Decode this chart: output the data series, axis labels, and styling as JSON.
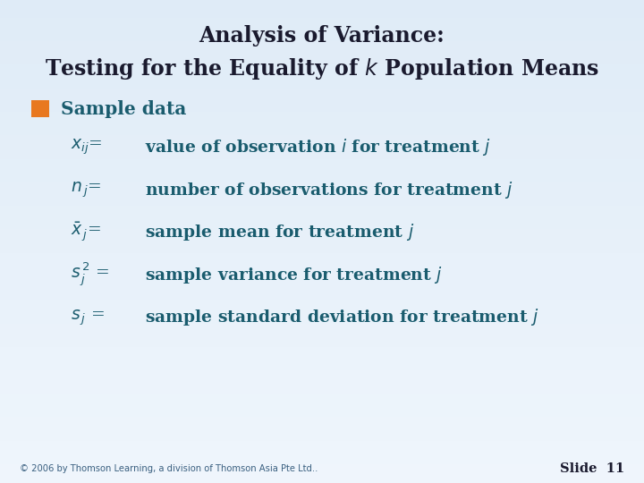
{
  "title_line1": "Analysis of Variance:",
  "title_color": "#1a1a2e",
  "text_color": "#1a5c6e",
  "bullet_color": "#e87820",
  "bg_color": "#cce0f0",
  "footer_text": "© 2006 by Thomson Learning, a division of Thomson Asia Pte Ltd..",
  "slide_text": "Slide  11",
  "items": [
    [
      "$x_{ij}$=",
      "value of observation $i$ for treatment $j$"
    ],
    [
      "$n_{\\,j}$=",
      "number of observations for treatment $j$"
    ],
    [
      "$\\bar{x}_{\\,j}$=",
      "sample mean for treatment $j$"
    ],
    [
      "$s_{\\,j}^{\\,2}$ =",
      "sample variance for treatment $j$"
    ],
    [
      "$s_{\\,j}$ =",
      "sample standard deviation for treatment $j$"
    ]
  ]
}
